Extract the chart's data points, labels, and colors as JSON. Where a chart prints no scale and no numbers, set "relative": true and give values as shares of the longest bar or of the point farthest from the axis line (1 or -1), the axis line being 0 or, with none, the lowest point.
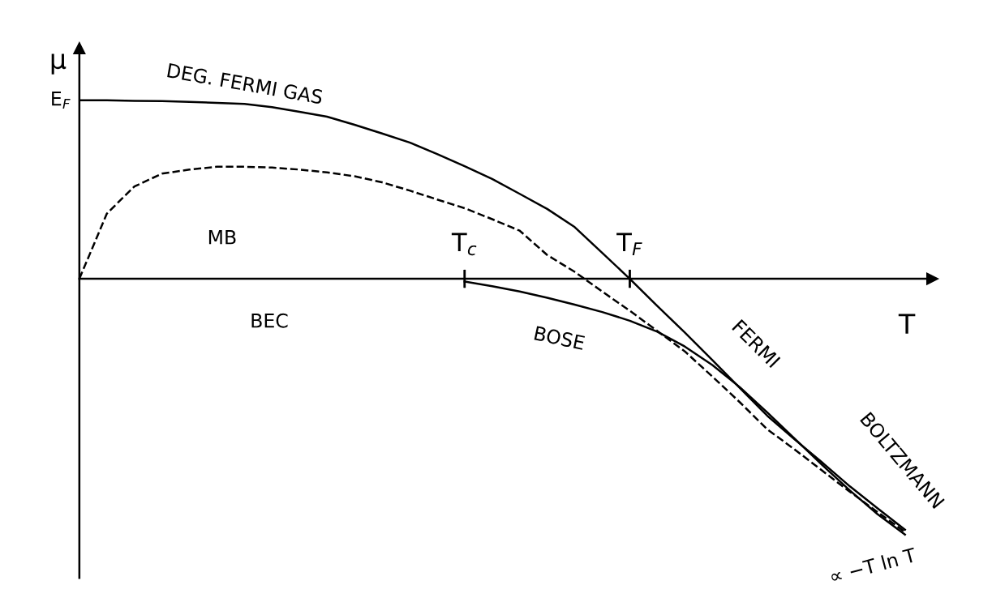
{
  "chart_data": {
    "type": "line",
    "relative": true,
    "xlabel": "T",
    "ylabel": "μ",
    "categories": [
      null,
      null,
      null,
      null,
      null,
      null,
      null,
      null,
      null,
      null,
      null,
      null,
      null,
      null,
      "T$_{c}$",
      null,
      null,
      null,
      null,
      null,
      "T$_{F}$",
      null,
      null,
      null,
      null,
      null,
      null,
      null,
      null,
      null,
      null
    ],
    "series": [
      {
        "color": "#000000",
        "line_style": "solid",
        "values": [
          0.698,
          0.698,
          0.696,
          0.695,
          0.692,
          0.688,
          0.684,
          0.671,
          0.653,
          0.634,
          0.602,
          0.568,
          0.533,
          0.488,
          0.44,
          0.39,
          0.332,
          0.273,
          0.202,
          0.101,
          0,
          -0.106,
          -0.21,
          -0.318,
          -0.427,
          -0.536,
          -0.629,
          -0.719,
          -0.812,
          -0.897,
          -0.981
        ]
      },
      {
        "color": "#000000",
        "line_style": "dashed",
        "values": [
          0,
          0.255,
          0.361,
          0.411,
          0.427,
          0.438,
          0.438,
          0.435,
          0.427,
          0.416,
          0.401,
          0.377,
          0.345,
          0.31,
          0.276,
          0.233,
          0.188,
          0.093,
          0.027,
          -0.05,
          -0.125,
          -0.204,
          -0.284,
          -0.382,
          -0.483,
          -0.589,
          -0.668,
          -0.751,
          -0.833,
          -0.912,
          -0.99
        ]
      },
      {
        "color": "#000000",
        "line_style": "solid",
        "values": [
          null,
          null,
          null,
          null,
          null,
          null,
          null,
          null,
          null,
          null,
          null,
          null,
          null,
          null,
          -0.011,
          -0.029,
          -0.05,
          -0.074,
          -0.101,
          -0.13,
          -0.164,
          -0.207,
          -0.265,
          -0.337,
          -0.424,
          -0.523,
          -0.626,
          -0.729,
          -0.828,
          -0.92,
          -1
        ]
      }
    ],
    "annotations": [
      "E$_{F}$",
      "DEG. FERMI GAS",
      "MB",
      "BEC",
      "BOSE",
      "FERMI",
      "BOLTZMANN",
      "∝ −T ln T"
    ],
    "legend": false
  }
}
